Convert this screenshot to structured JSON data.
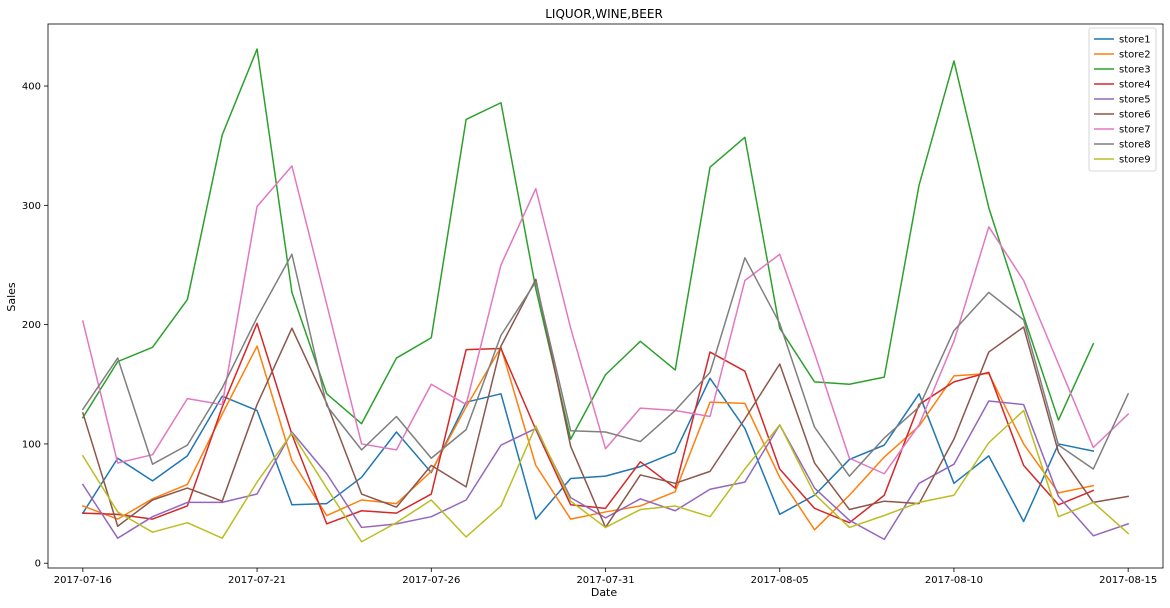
{
  "chart_data": {
    "type": "line",
    "title": "LIQUOR,WINE,BEER",
    "xlabel": "Date",
    "ylabel": "Sales",
    "x": [
      "2017-07-16",
      "2017-07-17",
      "2017-07-18",
      "2017-07-19",
      "2017-07-20",
      "2017-07-21",
      "2017-07-22",
      "2017-07-23",
      "2017-07-24",
      "2017-07-25",
      "2017-07-26",
      "2017-07-27",
      "2017-07-28",
      "2017-07-29",
      "2017-07-30",
      "2017-07-31",
      "2017-08-01",
      "2017-08-02",
      "2017-08-03",
      "2017-08-04",
      "2017-08-05",
      "2017-08-06",
      "2017-08-07",
      "2017-08-08",
      "2017-08-09",
      "2017-08-10",
      "2017-08-11",
      "2017-08-12",
      "2017-08-13",
      "2017-08-14",
      "2017-08-15"
    ],
    "xticks": [
      "2017-07-16",
      "2017-07-21",
      "2017-07-26",
      "2017-07-31",
      "2017-08-05",
      "2017-08-10",
      "2017-08-15"
    ],
    "yticks": [
      0,
      100,
      200,
      300,
      400
    ],
    "xlim": [
      "2017-07-15T00:00",
      "2017-08-16T00:00"
    ],
    "ylim": [
      -4,
      452
    ],
    "grid": false,
    "legend_position": "top-right",
    "series": [
      {
        "name": "store1",
        "color": "#1f77b4",
        "values": [
          42,
          88,
          69,
          90,
          140,
          128,
          49,
          50,
          72,
          110,
          76,
          135,
          142,
          37,
          71,
          73,
          81,
          93,
          155,
          113,
          41,
          57,
          87,
          99,
          142,
          67,
          90,
          35,
          100,
          94,
          null
        ]
      },
      {
        "name": "store2",
        "color": "#ff7f0e",
        "values": [
          48,
          37,
          54,
          66,
          125,
          182,
          86,
          40,
          53,
          50,
          77,
          131,
          181,
          82,
          37,
          43,
          48,
          60,
          135,
          134,
          72,
          28,
          57,
          89,
          115,
          157,
          159,
          100,
          59,
          65,
          null
        ]
      },
      {
        "name": "store3",
        "color": "#2ca02c",
        "values": [
          122,
          169,
          181,
          221,
          359,
          431,
          227,
          142,
          117,
          172,
          189,
          372,
          386,
          230,
          104,
          158,
          186,
          162,
          332,
          357,
          197,
          152,
          150,
          156,
          317,
          421,
          298,
          207,
          120,
          184,
          null
        ]
      },
      {
        "name": "store4",
        "color": "#d62728",
        "values": [
          42,
          41,
          37,
          48,
          131,
          201,
          108,
          33,
          44,
          42,
          58,
          179,
          180,
          112,
          49,
          46,
          85,
          63,
          177,
          161,
          79,
          46,
          34,
          57,
          133,
          152,
          160,
          82,
          49,
          61,
          null
        ]
      },
      {
        "name": "store5",
        "color": "#9467bd",
        "values": [
          66,
          21,
          39,
          51,
          51,
          58,
          110,
          75,
          30,
          33,
          39,
          53,
          99,
          113,
          55,
          38,
          54,
          44,
          62,
          68,
          116,
          63,
          36,
          20,
          67,
          83,
          136,
          133,
          56,
          23,
          33
        ]
      },
      {
        "name": "store6",
        "color": "#8c564b",
        "values": [
          126,
          31,
          53,
          63,
          52,
          133,
          197,
          134,
          58,
          47,
          82,
          64,
          182,
          238,
          98,
          30,
          74,
          67,
          77,
          121,
          167,
          84,
          45,
          52,
          50,
          104,
          177,
          198,
          93,
          51,
          56
        ]
      },
      {
        "name": "store7",
        "color": "#e377c2",
        "values": [
          203,
          84,
          91,
          138,
          133,
          299,
          333,
          217,
          100,
          95,
          150,
          133,
          250,
          314,
          197,
          96,
          130,
          128,
          123,
          237,
          259,
          176,
          88,
          75,
          116,
          186,
          282,
          237,
          167,
          97,
          125
        ]
      },
      {
        "name": "store8",
        "color": "#7f7f7f",
        "values": [
          129,
          172,
          83,
          99,
          147,
          206,
          259,
          132,
          95,
          123,
          88,
          112,
          191,
          236,
          111,
          110,
          102,
          128,
          160,
          256,
          201,
          114,
          73,
          105,
          131,
          195,
          227,
          204,
          99,
          79,
          142
        ]
      },
      {
        "name": "store9",
        "color": "#bcbd22",
        "values": [
          90,
          43,
          26,
          34,
          21,
          68,
          109,
          63,
          18,
          34,
          53,
          22,
          48,
          115,
          52,
          30,
          45,
          48,
          39,
          79,
          116,
          58,
          30,
          40,
          51,
          57,
          101,
          128,
          39,
          51,
          25
        ]
      }
    ]
  }
}
